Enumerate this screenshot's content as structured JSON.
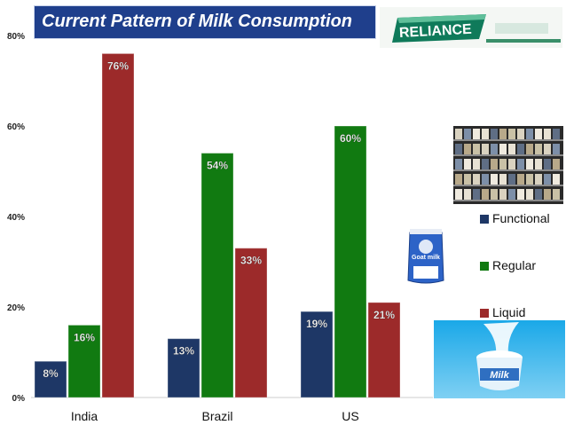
{
  "chart_data": {
    "type": "bar",
    "title": "Current Pattern of Milk Consumption",
    "categories": [
      "India",
      "Brazil",
      "US"
    ],
    "series": [
      {
        "name": "Functional",
        "values": [
          8,
          13,
          19
        ],
        "labels": [
          "8%",
          "13%",
          "19%"
        ]
      },
      {
        "name": "Regular",
        "values": [
          16,
          54,
          60
        ],
        "labels": [
          "16%",
          "54%",
          "60%"
        ]
      },
      {
        "name": "Liquid",
        "values": [
          76,
          33,
          21
        ],
        "labels": [
          "76%",
          "33%",
          "21%"
        ]
      }
    ],
    "ylim": [
      0,
      80
    ],
    "yticks": [
      "0%",
      "20%",
      "40%",
      "60%",
      "80%"
    ],
    "ytick_values": [
      0,
      20,
      40,
      60,
      80
    ],
    "grid": false,
    "legend_placement": "right"
  },
  "colors": {
    "Functional": "#1e3766",
    "Regular": "#117a11",
    "Liquid": "#9c2a2a",
    "title_bg": "#1f3f8c"
  },
  "images": {
    "logo_text": "RELIANCE",
    "goat_text": "Goat milk",
    "milk_text": "Milk"
  },
  "icons": [
    "reliance-logo-icon",
    "store-shelves-image",
    "goat-milk-pack-icon",
    "milk-splash-image"
  ]
}
